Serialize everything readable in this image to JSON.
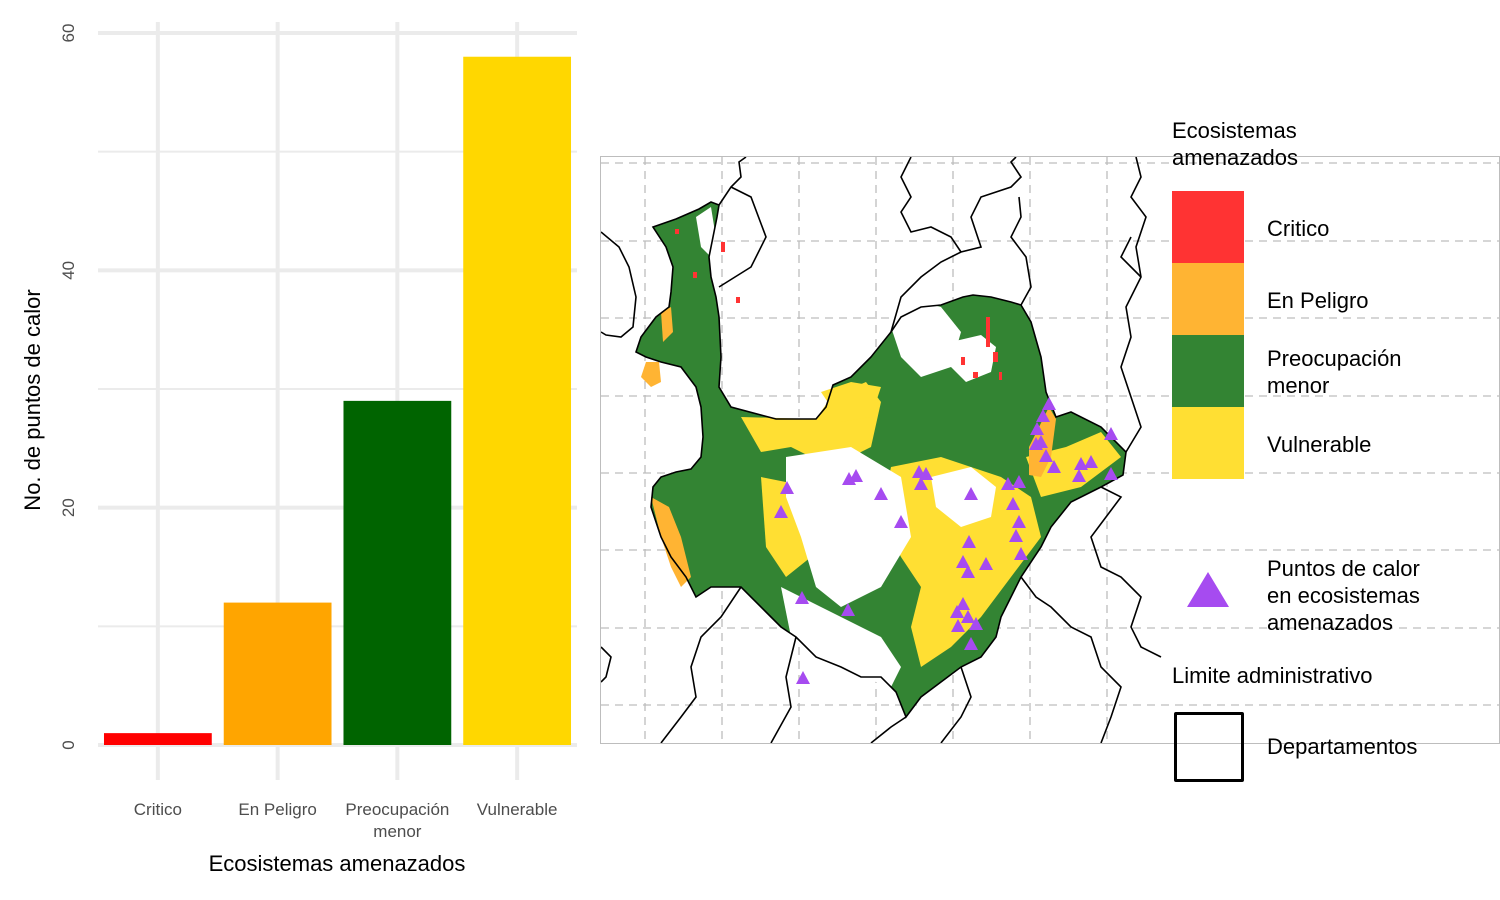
{
  "chart_data": {
    "type": "bar",
    "categories": [
      {
        "line1": "Critico",
        "line2": ""
      },
      {
        "line1": "En Peligro",
        "line2": ""
      },
      {
        "line1": "Preocupación",
        "line2": "menor"
      },
      {
        "line1": "Vulnerable",
        "line2": ""
      }
    ],
    "values": [
      1,
      12,
      29,
      58
    ],
    "colors": [
      "#ff0000",
      "#ffa500",
      "#006400",
      "#ffd700"
    ],
    "xlabel": "Ecosistemas amenazados",
    "ylabel": "No. de puntos de calor",
    "ylim": [
      0,
      60
    ],
    "yticks": [
      "0",
      "20",
      "40",
      "60"
    ],
    "grid": true
  },
  "map": {
    "legend": {
      "ecosystems_title_line1": "Ecosistemas",
      "ecosystems_title_line2": "amenazados",
      "items": [
        {
          "label_line1": "Critico",
          "label_line2": "",
          "color": "#ff3333"
        },
        {
          "label_line1": "En Peligro",
          "label_line2": "",
          "color": "#ffb433"
        },
        {
          "label_line1": "Preocupación",
          "label_line2": "menor",
          "color": "#338433"
        },
        {
          "label_line1": "Vulnerable",
          "label_line2": "",
          "color": "#ffdf33"
        }
      ],
      "points_label_line1": "Puntos de calor",
      "points_label_line2": "en ecosistemas",
      "points_label_line3": "amenazados",
      "points_color": "#a64bf0",
      "boundary_title": "Limite administrativo",
      "boundary_label": "Departamentos"
    }
  }
}
